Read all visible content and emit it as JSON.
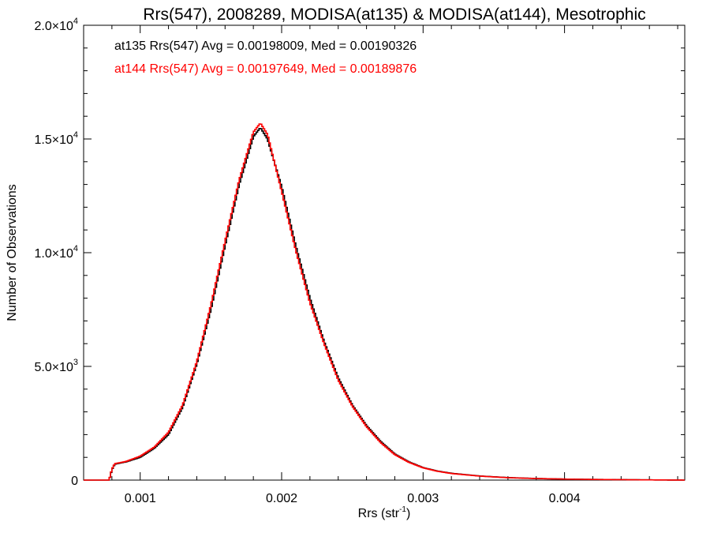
{
  "chart_data": {
    "type": "line",
    "title": "Rrs(547), 2008289, MODISA(at135) & MODISA(at144), Mesotrophic",
    "xlabel": "Rrs (str",
    "xlabel_sup": "-1",
    "xlabel_close": ")",
    "ylabel": "Number of Observations",
    "xlim": [
      0.0006,
      0.00485
    ],
    "ylim": [
      0,
      20000
    ],
    "x_ticks": [
      {
        "value": 0.001,
        "label": "0.001"
      },
      {
        "value": 0.002,
        "label": "0.002"
      },
      {
        "value": 0.003,
        "label": "0.003"
      },
      {
        "value": 0.004,
        "label": "0.004"
      }
    ],
    "y_ticks": [
      {
        "value": 0,
        "mant": "0",
        "exp": ""
      },
      {
        "value": 5000,
        "mant": "5.0×10",
        "exp": "3"
      },
      {
        "value": 10000,
        "mant": "1.0×10",
        "exp": "4"
      },
      {
        "value": 15000,
        "mant": "1.5×10",
        "exp": "4"
      },
      {
        "value": 20000,
        "mant": "2.0×10",
        "exp": "4"
      }
    ],
    "grid": false,
    "step": true,
    "series": [
      {
        "name": "at135",
        "color": "#000000",
        "legend": "at135 Rrs(547) Avg = 0.00198009, Med = 0.00190326",
        "points": [
          [
            0.0006,
            0
          ],
          [
            0.00078,
            0
          ],
          [
            0.0008,
            450
          ],
          [
            0.00082,
            700
          ],
          [
            0.0009,
            800
          ],
          [
            0.001,
            1000
          ],
          [
            0.0011,
            1400
          ],
          [
            0.0012,
            2000
          ],
          [
            0.0013,
            3200
          ],
          [
            0.0014,
            5100
          ],
          [
            0.0015,
            7500
          ],
          [
            0.0016,
            10300
          ],
          [
            0.0017,
            13000
          ],
          [
            0.0018,
            15100
          ],
          [
            0.00185,
            15500
          ],
          [
            0.0019,
            15000
          ],
          [
            0.002,
            12900
          ],
          [
            0.0021,
            10300
          ],
          [
            0.0022,
            8000
          ],
          [
            0.0023,
            6100
          ],
          [
            0.0024,
            4500
          ],
          [
            0.0025,
            3300
          ],
          [
            0.0026,
            2400
          ],
          [
            0.0027,
            1700
          ],
          [
            0.0028,
            1150
          ],
          [
            0.0029,
            800
          ],
          [
            0.003,
            550
          ],
          [
            0.0031,
            400
          ],
          [
            0.0032,
            300
          ],
          [
            0.0034,
            180
          ],
          [
            0.0036,
            110
          ],
          [
            0.0038,
            70
          ],
          [
            0.004,
            45
          ],
          [
            0.0042,
            30
          ],
          [
            0.0045,
            15
          ],
          [
            0.0047,
            5
          ],
          [
            0.00485,
            0
          ]
        ]
      },
      {
        "name": "at144",
        "color": "#ff0000",
        "legend": "at144 Rrs(547) Avg = 0.00197649, Med = 0.00189876",
        "points": [
          [
            0.0006,
            0
          ],
          [
            0.00078,
            0
          ],
          [
            0.0008,
            480
          ],
          [
            0.00082,
            720
          ],
          [
            0.0009,
            820
          ],
          [
            0.001,
            1050
          ],
          [
            0.0011,
            1450
          ],
          [
            0.0012,
            2100
          ],
          [
            0.0013,
            3300
          ],
          [
            0.0014,
            5200
          ],
          [
            0.0015,
            7700
          ],
          [
            0.0016,
            10500
          ],
          [
            0.0017,
            13200
          ],
          [
            0.0018,
            15300
          ],
          [
            0.00185,
            15700
          ],
          [
            0.0019,
            15200
          ],
          [
            0.002,
            12700
          ],
          [
            0.0021,
            10100
          ],
          [
            0.0022,
            7800
          ],
          [
            0.0023,
            6000
          ],
          [
            0.0024,
            4400
          ],
          [
            0.0025,
            3250
          ],
          [
            0.0026,
            2350
          ],
          [
            0.0027,
            1650
          ],
          [
            0.0028,
            1120
          ],
          [
            0.0029,
            780
          ],
          [
            0.003,
            540
          ],
          [
            0.0031,
            390
          ],
          [
            0.0032,
            290
          ],
          [
            0.0034,
            175
          ],
          [
            0.0036,
            105
          ],
          [
            0.0038,
            68
          ],
          [
            0.004,
            44
          ],
          [
            0.0042,
            28
          ],
          [
            0.0045,
            14
          ],
          [
            0.0047,
            5
          ],
          [
            0.00485,
            0
          ]
        ]
      }
    ]
  }
}
